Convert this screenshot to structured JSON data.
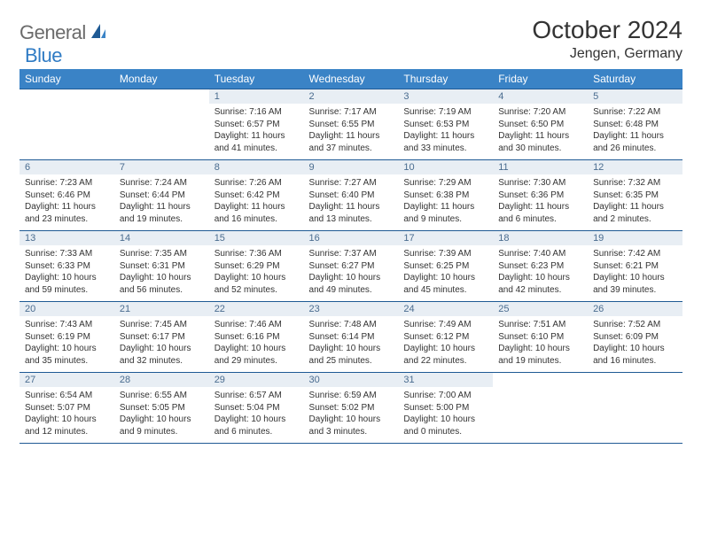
{
  "logo": {
    "general": "General",
    "blue": "Blue"
  },
  "title": "October 2024",
  "location": "Jengen, Germany",
  "colors": {
    "header_bg": "#3a83c6",
    "header_text": "#ffffff",
    "border": "#1f5a94",
    "daynum_bg": "#e8eef4",
    "daynum_text": "#4a6c8f",
    "body_text": "#333333",
    "logo_gray": "#6b6b6b",
    "logo_blue": "#2f7bc4",
    "page_bg": "#ffffff"
  },
  "fonts": {
    "title_size_pt": 21,
    "location_size_pt": 12,
    "header_size_pt": 9,
    "daynum_size_pt": 8,
    "body_size_pt": 7.5
  },
  "weekdays": [
    "Sunday",
    "Monday",
    "Tuesday",
    "Wednesday",
    "Thursday",
    "Friday",
    "Saturday"
  ],
  "weeks": [
    [
      {
        "n": "",
        "lines": [
          "",
          "",
          ""
        ]
      },
      {
        "n": "",
        "lines": [
          "",
          "",
          ""
        ]
      },
      {
        "n": "1",
        "lines": [
          "Sunrise: 7:16 AM",
          "Sunset: 6:57 PM",
          "Daylight: 11 hours and 41 minutes."
        ]
      },
      {
        "n": "2",
        "lines": [
          "Sunrise: 7:17 AM",
          "Sunset: 6:55 PM",
          "Daylight: 11 hours and 37 minutes."
        ]
      },
      {
        "n": "3",
        "lines": [
          "Sunrise: 7:19 AM",
          "Sunset: 6:53 PM",
          "Daylight: 11 hours and 33 minutes."
        ]
      },
      {
        "n": "4",
        "lines": [
          "Sunrise: 7:20 AM",
          "Sunset: 6:50 PM",
          "Daylight: 11 hours and 30 minutes."
        ]
      },
      {
        "n": "5",
        "lines": [
          "Sunrise: 7:22 AM",
          "Sunset: 6:48 PM",
          "Daylight: 11 hours and 26 minutes."
        ]
      }
    ],
    [
      {
        "n": "6",
        "lines": [
          "Sunrise: 7:23 AM",
          "Sunset: 6:46 PM",
          "Daylight: 11 hours and 23 minutes."
        ]
      },
      {
        "n": "7",
        "lines": [
          "Sunrise: 7:24 AM",
          "Sunset: 6:44 PM",
          "Daylight: 11 hours and 19 minutes."
        ]
      },
      {
        "n": "8",
        "lines": [
          "Sunrise: 7:26 AM",
          "Sunset: 6:42 PM",
          "Daylight: 11 hours and 16 minutes."
        ]
      },
      {
        "n": "9",
        "lines": [
          "Sunrise: 7:27 AM",
          "Sunset: 6:40 PM",
          "Daylight: 11 hours and 13 minutes."
        ]
      },
      {
        "n": "10",
        "lines": [
          "Sunrise: 7:29 AM",
          "Sunset: 6:38 PM",
          "Daylight: 11 hours and 9 minutes."
        ]
      },
      {
        "n": "11",
        "lines": [
          "Sunrise: 7:30 AM",
          "Sunset: 6:36 PM",
          "Daylight: 11 hours and 6 minutes."
        ]
      },
      {
        "n": "12",
        "lines": [
          "Sunrise: 7:32 AM",
          "Sunset: 6:35 PM",
          "Daylight: 11 hours and 2 minutes."
        ]
      }
    ],
    [
      {
        "n": "13",
        "lines": [
          "Sunrise: 7:33 AM",
          "Sunset: 6:33 PM",
          "Daylight: 10 hours and 59 minutes."
        ]
      },
      {
        "n": "14",
        "lines": [
          "Sunrise: 7:35 AM",
          "Sunset: 6:31 PM",
          "Daylight: 10 hours and 56 minutes."
        ]
      },
      {
        "n": "15",
        "lines": [
          "Sunrise: 7:36 AM",
          "Sunset: 6:29 PM",
          "Daylight: 10 hours and 52 minutes."
        ]
      },
      {
        "n": "16",
        "lines": [
          "Sunrise: 7:37 AM",
          "Sunset: 6:27 PM",
          "Daylight: 10 hours and 49 minutes."
        ]
      },
      {
        "n": "17",
        "lines": [
          "Sunrise: 7:39 AM",
          "Sunset: 6:25 PM",
          "Daylight: 10 hours and 45 minutes."
        ]
      },
      {
        "n": "18",
        "lines": [
          "Sunrise: 7:40 AM",
          "Sunset: 6:23 PM",
          "Daylight: 10 hours and 42 minutes."
        ]
      },
      {
        "n": "19",
        "lines": [
          "Sunrise: 7:42 AM",
          "Sunset: 6:21 PM",
          "Daylight: 10 hours and 39 minutes."
        ]
      }
    ],
    [
      {
        "n": "20",
        "lines": [
          "Sunrise: 7:43 AM",
          "Sunset: 6:19 PM",
          "Daylight: 10 hours and 35 minutes."
        ]
      },
      {
        "n": "21",
        "lines": [
          "Sunrise: 7:45 AM",
          "Sunset: 6:17 PM",
          "Daylight: 10 hours and 32 minutes."
        ]
      },
      {
        "n": "22",
        "lines": [
          "Sunrise: 7:46 AM",
          "Sunset: 6:16 PM",
          "Daylight: 10 hours and 29 minutes."
        ]
      },
      {
        "n": "23",
        "lines": [
          "Sunrise: 7:48 AM",
          "Sunset: 6:14 PM",
          "Daylight: 10 hours and 25 minutes."
        ]
      },
      {
        "n": "24",
        "lines": [
          "Sunrise: 7:49 AM",
          "Sunset: 6:12 PM",
          "Daylight: 10 hours and 22 minutes."
        ]
      },
      {
        "n": "25",
        "lines": [
          "Sunrise: 7:51 AM",
          "Sunset: 6:10 PM",
          "Daylight: 10 hours and 19 minutes."
        ]
      },
      {
        "n": "26",
        "lines": [
          "Sunrise: 7:52 AM",
          "Sunset: 6:09 PM",
          "Daylight: 10 hours and 16 minutes."
        ]
      }
    ],
    [
      {
        "n": "27",
        "lines": [
          "Sunrise: 6:54 AM",
          "Sunset: 5:07 PM",
          "Daylight: 10 hours and 12 minutes."
        ]
      },
      {
        "n": "28",
        "lines": [
          "Sunrise: 6:55 AM",
          "Sunset: 5:05 PM",
          "Daylight: 10 hours and 9 minutes."
        ]
      },
      {
        "n": "29",
        "lines": [
          "Sunrise: 6:57 AM",
          "Sunset: 5:04 PM",
          "Daylight: 10 hours and 6 minutes."
        ]
      },
      {
        "n": "30",
        "lines": [
          "Sunrise: 6:59 AM",
          "Sunset: 5:02 PM",
          "Daylight: 10 hours and 3 minutes."
        ]
      },
      {
        "n": "31",
        "lines": [
          "Sunrise: 7:00 AM",
          "Sunset: 5:00 PM",
          "Daylight: 10 hours and 0 minutes."
        ]
      },
      {
        "n": "",
        "lines": [
          "",
          "",
          ""
        ]
      },
      {
        "n": "",
        "lines": [
          "",
          "",
          ""
        ]
      }
    ]
  ]
}
